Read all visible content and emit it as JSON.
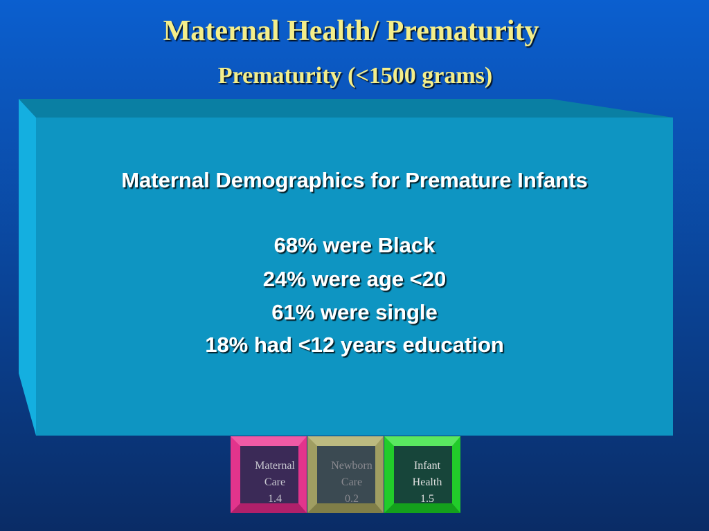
{
  "header": {
    "title": "Maternal Health/ Prematurity",
    "subtitle": "Prematurity (<1500 grams)"
  },
  "panel": {
    "heading": "Maternal Demographics for Premature Infants",
    "lines": [
      "68% were Black",
      "24% were age <20",
      "61% were single",
      "18% had <12 years education"
    ]
  },
  "buttons": [
    {
      "lines": [
        "Maternal",
        "Care",
        "1.4"
      ]
    },
    {
      "lines": [
        "Newborn",
        "Care",
        "0.2"
      ]
    },
    {
      "lines": [
        "Infant",
        "Health",
        "1.5"
      ]
    }
  ]
}
